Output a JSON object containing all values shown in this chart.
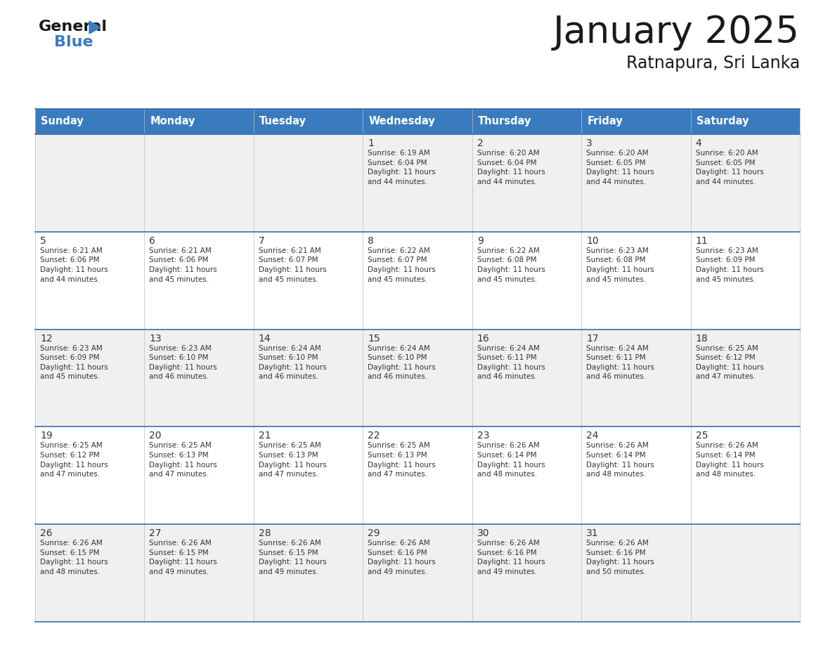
{
  "title": "January 2025",
  "subtitle": "Ratnapura, Sri Lanka",
  "header_bg": "#3a7bbf",
  "header_text": "#ffffff",
  "row_bg_odd": "#f0f0f0",
  "row_bg_even": "#ffffff",
  "separator_color": "#3a6ea8",
  "text_color": "#333333",
  "days_of_week": [
    "Sunday",
    "Monday",
    "Tuesday",
    "Wednesday",
    "Thursday",
    "Friday",
    "Saturday"
  ],
  "calendar": [
    [
      {
        "day": "",
        "info": ""
      },
      {
        "day": "",
        "info": ""
      },
      {
        "day": "",
        "info": ""
      },
      {
        "day": "1",
        "info": "Sunrise: 6:19 AM\nSunset: 6:04 PM\nDaylight: 11 hours\nand 44 minutes."
      },
      {
        "day": "2",
        "info": "Sunrise: 6:20 AM\nSunset: 6:04 PM\nDaylight: 11 hours\nand 44 minutes."
      },
      {
        "day": "3",
        "info": "Sunrise: 6:20 AM\nSunset: 6:05 PM\nDaylight: 11 hours\nand 44 minutes."
      },
      {
        "day": "4",
        "info": "Sunrise: 6:20 AM\nSunset: 6:05 PM\nDaylight: 11 hours\nand 44 minutes."
      }
    ],
    [
      {
        "day": "5",
        "info": "Sunrise: 6:21 AM\nSunset: 6:06 PM\nDaylight: 11 hours\nand 44 minutes."
      },
      {
        "day": "6",
        "info": "Sunrise: 6:21 AM\nSunset: 6:06 PM\nDaylight: 11 hours\nand 45 minutes."
      },
      {
        "day": "7",
        "info": "Sunrise: 6:21 AM\nSunset: 6:07 PM\nDaylight: 11 hours\nand 45 minutes."
      },
      {
        "day": "8",
        "info": "Sunrise: 6:22 AM\nSunset: 6:07 PM\nDaylight: 11 hours\nand 45 minutes."
      },
      {
        "day": "9",
        "info": "Sunrise: 6:22 AM\nSunset: 6:08 PM\nDaylight: 11 hours\nand 45 minutes."
      },
      {
        "day": "10",
        "info": "Sunrise: 6:23 AM\nSunset: 6:08 PM\nDaylight: 11 hours\nand 45 minutes."
      },
      {
        "day": "11",
        "info": "Sunrise: 6:23 AM\nSunset: 6:09 PM\nDaylight: 11 hours\nand 45 minutes."
      }
    ],
    [
      {
        "day": "12",
        "info": "Sunrise: 6:23 AM\nSunset: 6:09 PM\nDaylight: 11 hours\nand 45 minutes."
      },
      {
        "day": "13",
        "info": "Sunrise: 6:23 AM\nSunset: 6:10 PM\nDaylight: 11 hours\nand 46 minutes."
      },
      {
        "day": "14",
        "info": "Sunrise: 6:24 AM\nSunset: 6:10 PM\nDaylight: 11 hours\nand 46 minutes."
      },
      {
        "day": "15",
        "info": "Sunrise: 6:24 AM\nSunset: 6:10 PM\nDaylight: 11 hours\nand 46 minutes."
      },
      {
        "day": "16",
        "info": "Sunrise: 6:24 AM\nSunset: 6:11 PM\nDaylight: 11 hours\nand 46 minutes."
      },
      {
        "day": "17",
        "info": "Sunrise: 6:24 AM\nSunset: 6:11 PM\nDaylight: 11 hours\nand 46 minutes."
      },
      {
        "day": "18",
        "info": "Sunrise: 6:25 AM\nSunset: 6:12 PM\nDaylight: 11 hours\nand 47 minutes."
      }
    ],
    [
      {
        "day": "19",
        "info": "Sunrise: 6:25 AM\nSunset: 6:12 PM\nDaylight: 11 hours\nand 47 minutes."
      },
      {
        "day": "20",
        "info": "Sunrise: 6:25 AM\nSunset: 6:13 PM\nDaylight: 11 hours\nand 47 minutes."
      },
      {
        "day": "21",
        "info": "Sunrise: 6:25 AM\nSunset: 6:13 PM\nDaylight: 11 hours\nand 47 minutes."
      },
      {
        "day": "22",
        "info": "Sunrise: 6:25 AM\nSunset: 6:13 PM\nDaylight: 11 hours\nand 47 minutes."
      },
      {
        "day": "23",
        "info": "Sunrise: 6:26 AM\nSunset: 6:14 PM\nDaylight: 11 hours\nand 48 minutes."
      },
      {
        "day": "24",
        "info": "Sunrise: 6:26 AM\nSunset: 6:14 PM\nDaylight: 11 hours\nand 48 minutes."
      },
      {
        "day": "25",
        "info": "Sunrise: 6:26 AM\nSunset: 6:14 PM\nDaylight: 11 hours\nand 48 minutes."
      }
    ],
    [
      {
        "day": "26",
        "info": "Sunrise: 6:26 AM\nSunset: 6:15 PM\nDaylight: 11 hours\nand 48 minutes."
      },
      {
        "day": "27",
        "info": "Sunrise: 6:26 AM\nSunset: 6:15 PM\nDaylight: 11 hours\nand 49 minutes."
      },
      {
        "day": "28",
        "info": "Sunrise: 6:26 AM\nSunset: 6:15 PM\nDaylight: 11 hours\nand 49 minutes."
      },
      {
        "day": "29",
        "info": "Sunrise: 6:26 AM\nSunset: 6:16 PM\nDaylight: 11 hours\nand 49 minutes."
      },
      {
        "day": "30",
        "info": "Sunrise: 6:26 AM\nSunset: 6:16 PM\nDaylight: 11 hours\nand 49 minutes."
      },
      {
        "day": "31",
        "info": "Sunrise: 6:26 AM\nSunset: 6:16 PM\nDaylight: 11 hours\nand 50 minutes."
      },
      {
        "day": "",
        "info": ""
      }
    ]
  ],
  "logo_general_color": "#1a1a1a",
  "logo_blue_color": "#3a7bbf",
  "logo_triangle_color": "#3a7bbf",
  "fig_width": 11.88,
  "fig_height": 9.18,
  "dpi": 100
}
